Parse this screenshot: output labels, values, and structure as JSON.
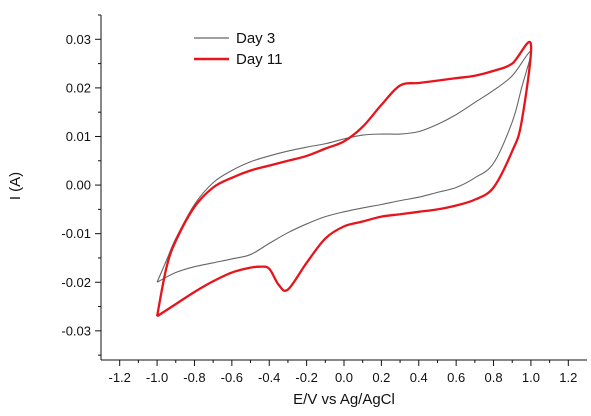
{
  "chart_data": {
    "type": "line",
    "title": "",
    "xlabel": "E/V vs Ag/AgCl",
    "ylabel": "I (A)",
    "xlim": [
      -1.3,
      1.3
    ],
    "ylim": [
      -0.036,
      0.035
    ],
    "x_ticks": [
      -1.2,
      -1.0,
      -0.8,
      -0.6,
      -0.4,
      -0.2,
      0.0,
      0.2,
      0.4,
      0.6,
      0.8,
      1.0,
      1.2
    ],
    "x_tick_labels": [
      "-1.2",
      "-1.0",
      "-0.8",
      "-0.6",
      "-0.4",
      "-0.2",
      "0.0",
      "0.2",
      "0.4",
      "0.6",
      "0.8",
      "1.0",
      "1.2"
    ],
    "y_ticks": [
      -0.03,
      -0.02,
      -0.01,
      0.0,
      0.01,
      0.02,
      0.03
    ],
    "y_tick_labels": [
      "-0.03",
      "-0.02",
      "-0.01",
      "0.00",
      "0.01",
      "0.02",
      "0.03"
    ],
    "grid": false,
    "legend_position": "top-left",
    "series": [
      {
        "name": "Day 3",
        "color": "#666666",
        "points": [
          [
            -1.0,
            -0.02
          ],
          [
            -0.95,
            -0.0155
          ],
          [
            -0.9,
            -0.011
          ],
          [
            -0.8,
            -0.004
          ],
          [
            -0.7,
            0.0005
          ],
          [
            -0.6,
            0.003
          ],
          [
            -0.5,
            0.0048
          ],
          [
            -0.4,
            0.006
          ],
          [
            -0.3,
            0.007
          ],
          [
            -0.2,
            0.0078
          ],
          [
            -0.1,
            0.0085
          ],
          [
            0.0,
            0.0095
          ],
          [
            0.1,
            0.0103
          ],
          [
            0.2,
            0.0105
          ],
          [
            0.3,
            0.0105
          ],
          [
            0.4,
            0.011
          ],
          [
            0.5,
            0.0125
          ],
          [
            0.6,
            0.0145
          ],
          [
            0.7,
            0.017
          ],
          [
            0.8,
            0.0195
          ],
          [
            0.9,
            0.0225
          ],
          [
            1.0,
            0.0275
          ],
          [
            0.95,
            0.02
          ],
          [
            0.9,
            0.013
          ],
          [
            0.8,
            0.0045
          ],
          [
            0.7,
            0.0015
          ],
          [
            0.6,
            -0.0005
          ],
          [
            0.5,
            -0.0015
          ],
          [
            0.4,
            -0.0025
          ],
          [
            0.3,
            -0.0032
          ],
          [
            0.2,
            -0.004
          ],
          [
            0.1,
            -0.0047
          ],
          [
            0.0,
            -0.0055
          ],
          [
            -0.1,
            -0.0065
          ],
          [
            -0.2,
            -0.008
          ],
          [
            -0.3,
            -0.0098
          ],
          [
            -0.4,
            -0.012
          ],
          [
            -0.5,
            -0.0143
          ],
          [
            -0.6,
            -0.0152
          ],
          [
            -0.7,
            -0.016
          ],
          [
            -0.8,
            -0.0168
          ],
          [
            -0.9,
            -0.018
          ],
          [
            -1.0,
            -0.02
          ]
        ]
      },
      {
        "name": "Day 11",
        "color": "#e8141b",
        "points": [
          [
            -1.0,
            -0.027
          ],
          [
            -0.95,
            -0.017
          ],
          [
            -0.9,
            -0.0115
          ],
          [
            -0.8,
            -0.0045
          ],
          [
            -0.7,
            -0.0005
          ],
          [
            -0.6,
            0.0015
          ],
          [
            -0.5,
            0.003
          ],
          [
            -0.4,
            0.004
          ],
          [
            -0.3,
            0.005
          ],
          [
            -0.2,
            0.006
          ],
          [
            -0.1,
            0.0075
          ],
          [
            0.0,
            0.009
          ],
          [
            0.1,
            0.012
          ],
          [
            0.2,
            0.0165
          ],
          [
            0.3,
            0.0205
          ],
          [
            0.4,
            0.021
          ],
          [
            0.5,
            0.0215
          ],
          [
            0.6,
            0.022
          ],
          [
            0.7,
            0.0225
          ],
          [
            0.8,
            0.0235
          ],
          [
            0.9,
            0.025
          ],
          [
            1.0,
            0.029
          ],
          [
            0.95,
            0.013
          ],
          [
            0.9,
            0.007
          ],
          [
            0.8,
            -0.0005
          ],
          [
            0.7,
            -0.003
          ],
          [
            0.6,
            -0.0042
          ],
          [
            0.5,
            -0.005
          ],
          [
            0.4,
            -0.0055
          ],
          [
            0.3,
            -0.006
          ],
          [
            0.2,
            -0.0065
          ],
          [
            0.1,
            -0.0075
          ],
          [
            0.0,
            -0.0085
          ],
          [
            -0.1,
            -0.011
          ],
          [
            -0.2,
            -0.016
          ],
          [
            -0.3,
            -0.0215
          ],
          [
            -0.35,
            -0.0205
          ],
          [
            -0.4,
            -0.0172
          ],
          [
            -0.45,
            -0.0168
          ],
          [
            -0.5,
            -0.017
          ],
          [
            -0.6,
            -0.018
          ],
          [
            -0.7,
            -0.0198
          ],
          [
            -0.8,
            -0.022
          ],
          [
            -0.9,
            -0.0245
          ],
          [
            -1.0,
            -0.027
          ]
        ]
      }
    ]
  }
}
